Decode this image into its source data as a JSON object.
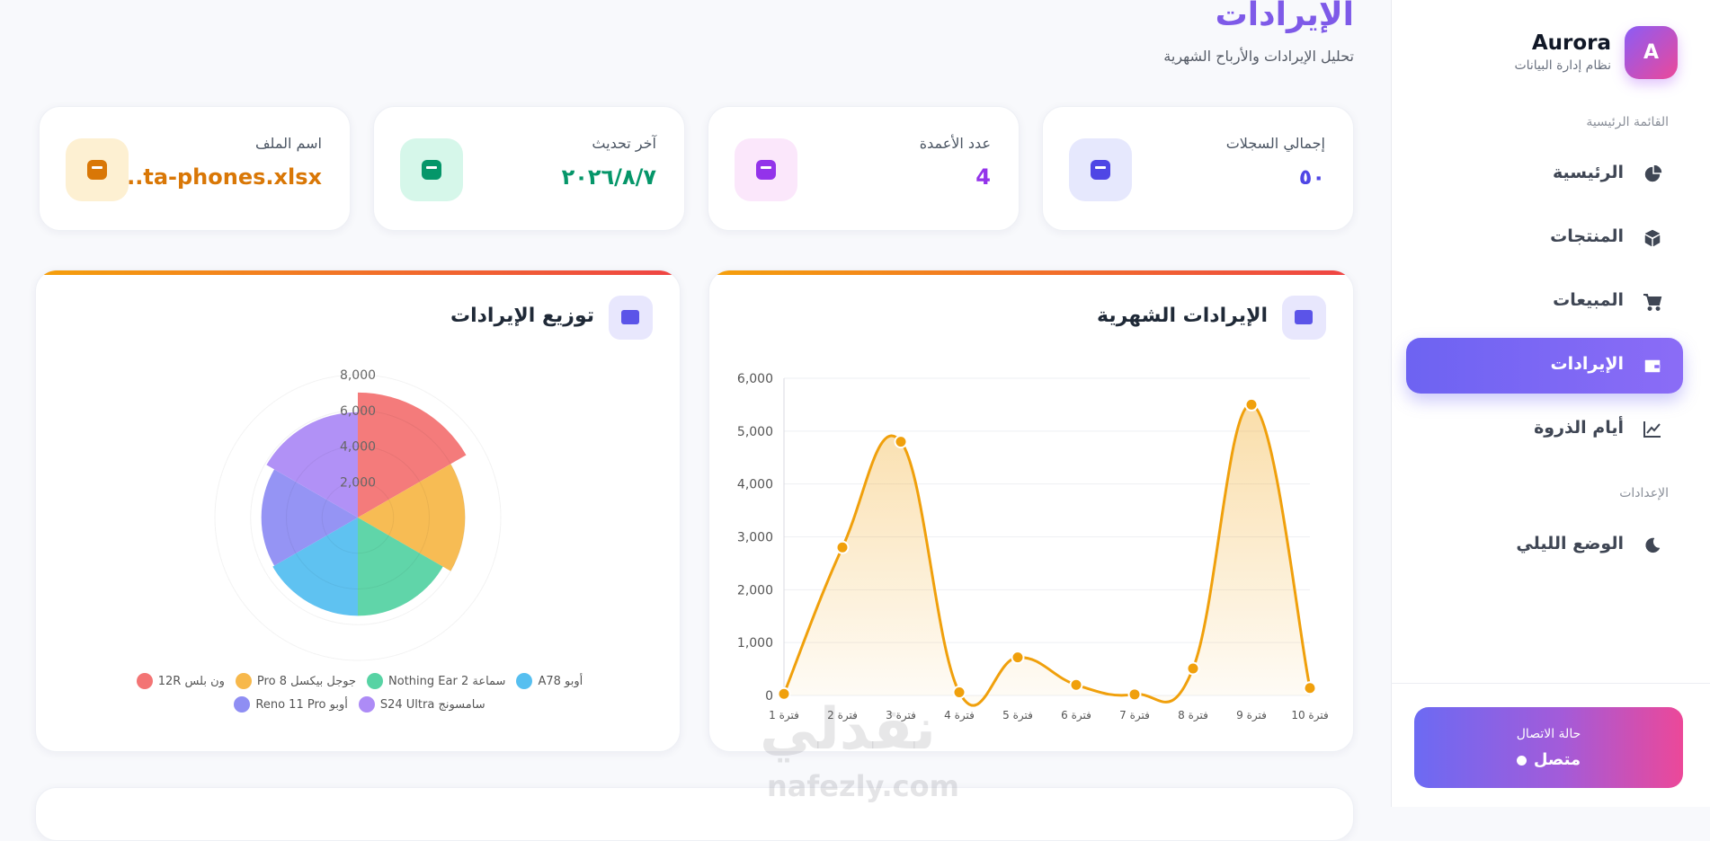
{
  "header": {
    "title": "الإيرادات",
    "subtitle": "تحليل الإيرادات والأرباح الشهرية"
  },
  "sidebar": {
    "logo": "A",
    "brand": "Aurora",
    "tagline": "نظام إدارة البيانات",
    "sections": [
      {
        "title": "القائمة الرئيسية",
        "items": [
          {
            "label": "الرئيسية",
            "active": false
          },
          {
            "label": "المنتجات",
            "active": false
          },
          {
            "label": "المبيعات",
            "active": false
          },
          {
            "label": "الإيرادات",
            "active": true
          },
          {
            "label": "أيام الذروة",
            "active": false
          }
        ]
      },
      {
        "title": "الإعدادات",
        "items": [
          {
            "label": "الوضع الليلي",
            "active": false
          }
        ]
      }
    ],
    "status": {
      "title": "حالة الاتصال",
      "value": "متصل"
    }
  },
  "stats": [
    {
      "label": "إجمالي السجلات",
      "value": "٥٠",
      "color": "#4f46e5",
      "icon_bg": "#e6e8fd"
    },
    {
      "label": "عدد الأعمدة",
      "value": "4",
      "color": "#9333ea",
      "icon_bg": "#fbe7fb"
    },
    {
      "label": "آخر تحديث",
      "value": "٢٠٢٦/٨/٧",
      "color": "#059669",
      "icon_bg": "#d6f7ea"
    },
    {
      "label": "اسم الملف",
      "value": "...ta-phones.xlsx",
      "color": "#d97706",
      "icon_bg": "#fdf0d2"
    }
  ],
  "watermark": {
    "arabic": "نفذلي",
    "latin": "nafezly.com"
  },
  "chart_data": [
    {
      "type": "line",
      "title": "الإيرادات الشهرية",
      "color": "#f0a00c",
      "grid": true,
      "categories": [
        "فترة 1",
        "فترة 2",
        "فترة 3",
        "فترة 4",
        "فترة 5",
        "فترة 6",
        "فترة 7",
        "فترة 8",
        "فترة 9",
        "فترة 10"
      ],
      "values": [
        30,
        2800,
        4800,
        60,
        720,
        200,
        20,
        510,
        5500,
        140
      ],
      "ylim": [
        0,
        6000
      ],
      "yticks": [
        0,
        {
          "value": 1000,
          "label": "1,000"
        },
        {
          "value": 2000,
          "label": "2,000"
        },
        {
          "value": 3000,
          "label": "3,000"
        },
        {
          "value": 4000,
          "label": "4,000"
        },
        {
          "value": 5000,
          "label": "5,000"
        },
        {
          "value": 6000,
          "label": "6,000"
        }
      ]
    },
    {
      "type": "polar",
      "title": "توزيع الإيرادات",
      "grid": true,
      "categories": [
        "ون بلس 12R",
        "جوجل بيكسل 8 Pro",
        "سماعة Nothing Ear 2",
        "أوبو A78",
        "أوبو Reno 11 Pro",
        "سامسونج S24 Ultra"
      ],
      "values": [
        7000,
        6000,
        5500,
        5500,
        5400,
        5900
      ],
      "colors": [
        "#f37474",
        "#f7b84b",
        "#57d3a4",
        "#56bff0",
        "#8f8ef3",
        "#ad8bf6"
      ],
      "rlim": [
        0,
        8000
      ],
      "rticks": [
        {
          "value": 2000,
          "label": "2,000"
        },
        {
          "value": 4000,
          "label": "4,000"
        },
        {
          "value": 6000,
          "label": "6,000"
        },
        {
          "value": 8000,
          "label": "8,000"
        }
      ]
    }
  ]
}
